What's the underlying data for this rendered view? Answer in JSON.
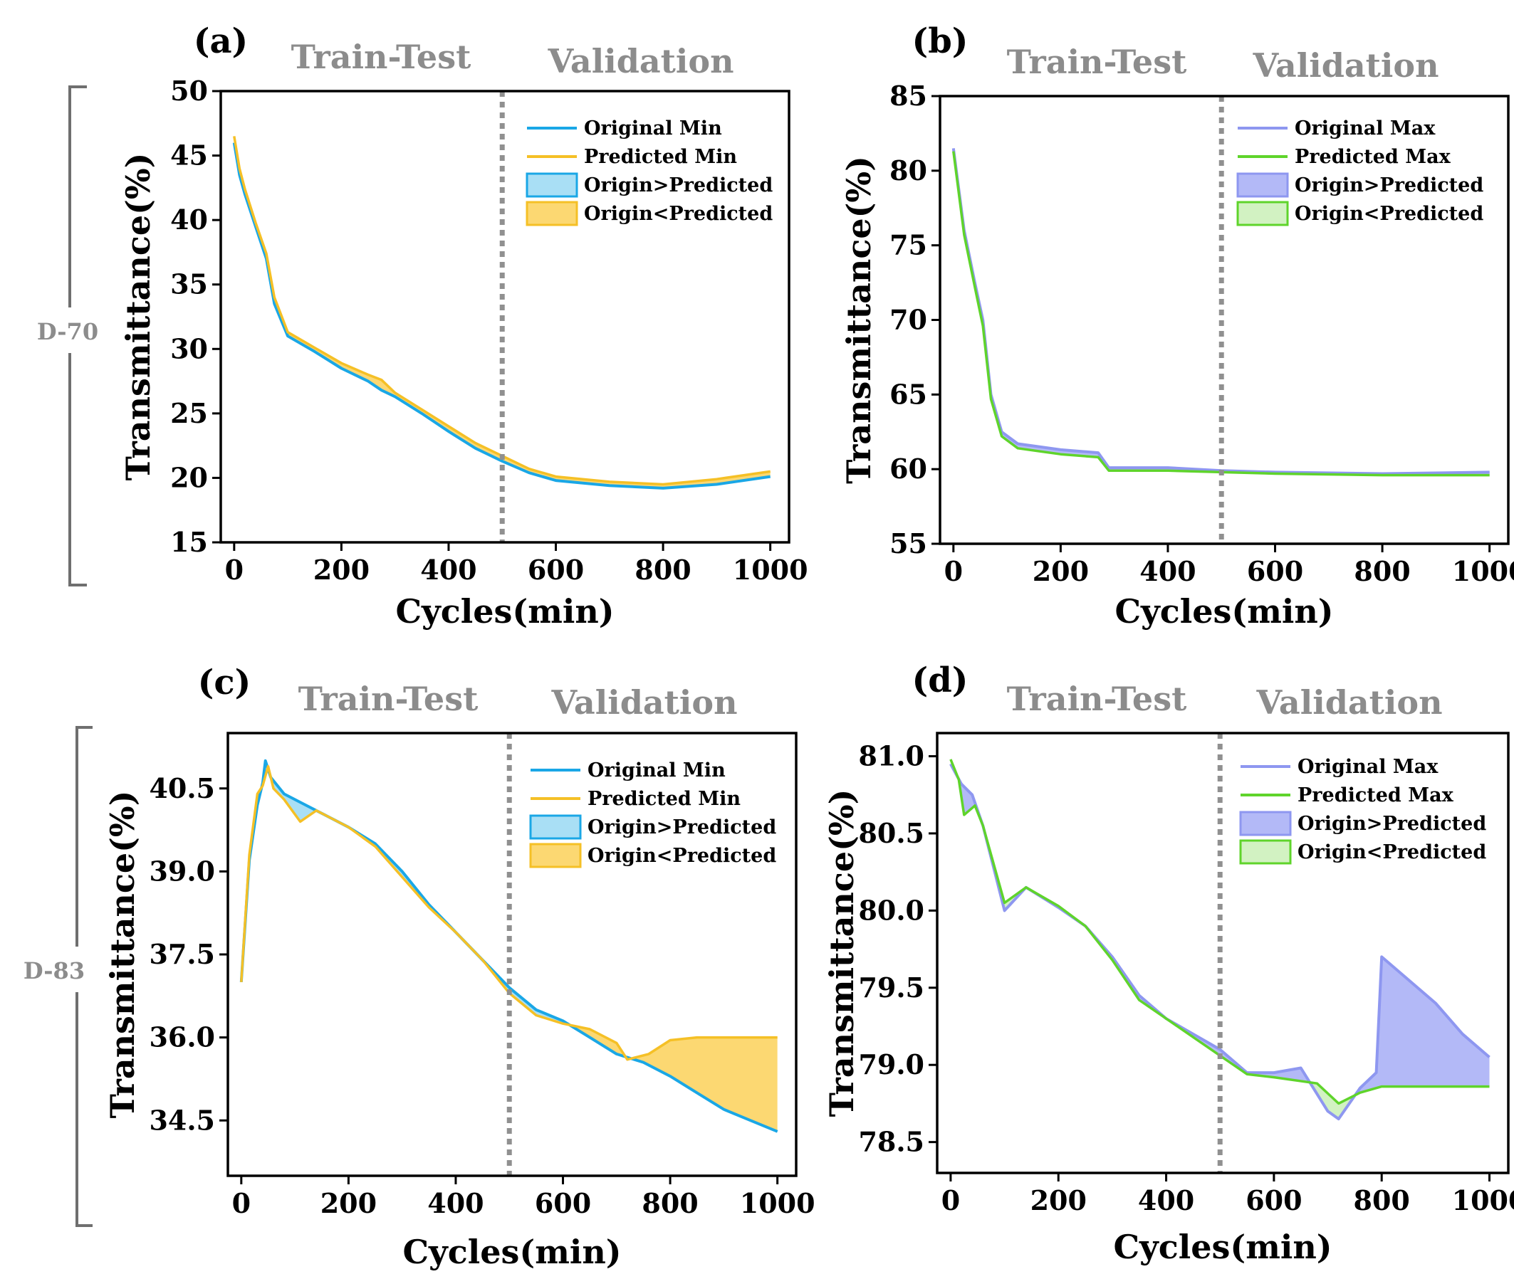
{
  "colors": {
    "original_min": "#1aa7e6",
    "predicted_min": "#f5c026",
    "fill_origin_gt_min": "#a9dff5",
    "fill_origin_lt_min": "#fcd872",
    "original_max": "#8e97f0",
    "predicted_max": "#5fd42b",
    "fill_origin_gt_max": "#b3b9f7",
    "fill_origin_lt_max": "#d2f2c2",
    "divider": "#909090",
    "region_text": "#8c8c8c"
  },
  "groups": [
    {
      "label": "D-70"
    },
    {
      "label": "D-83"
    }
  ],
  "chart_data": [
    {
      "panel": "(a)",
      "type": "line",
      "region_left": "Train-Test",
      "region_right": "Validation",
      "divider_x": 500,
      "xlabel": "Cycles(min)",
      "ylabel": "Transmittance(%)",
      "xlim": [
        -25,
        1035
      ],
      "ylim": [
        15,
        50
      ],
      "xticks": [
        0,
        200,
        400,
        600,
        800,
        1000
      ],
      "yticks": [
        15,
        20,
        25,
        30,
        35,
        40,
        45,
        50
      ],
      "legend_position": "top-right",
      "legend": [
        "Original Min",
        "Predicted Min",
        "Origin>Predicted",
        "Origin<Predicted"
      ],
      "series": [
        {
          "name": "Original Min",
          "points": [
            [
              0,
              46.0
            ],
            [
              10,
              43.5
            ],
            [
              20,
              42.0
            ],
            [
              40,
              39.5
            ],
            [
              60,
              37.0
            ],
            [
              75,
              33.5
            ],
            [
              100,
              31.0
            ],
            [
              150,
              29.8
            ],
            [
              200,
              28.5
            ],
            [
              250,
              27.5
            ],
            [
              275,
              26.8
            ],
            [
              300,
              26.3
            ],
            [
              350,
              25.0
            ],
            [
              400,
              23.6
            ],
            [
              450,
              22.3
            ],
            [
              500,
              21.3
            ],
            [
              550,
              20.4
            ],
            [
              600,
              19.8
            ],
            [
              700,
              19.4
            ],
            [
              800,
              19.2
            ],
            [
              900,
              19.5
            ],
            [
              1000,
              20.1
            ]
          ]
        },
        {
          "name": "Predicted Min",
          "points": [
            [
              0,
              46.5
            ],
            [
              10,
              44.0
            ],
            [
              20,
              42.4
            ],
            [
              40,
              39.8
            ],
            [
              60,
              37.4
            ],
            [
              75,
              34.0
            ],
            [
              100,
              31.3
            ],
            [
              150,
              30.1
            ],
            [
              200,
              28.9
            ],
            [
              250,
              28.0
            ],
            [
              275,
              27.6
            ],
            [
              300,
              26.6
            ],
            [
              350,
              25.3
            ],
            [
              400,
              24.0
            ],
            [
              450,
              22.7
            ],
            [
              500,
              21.7
            ],
            [
              550,
              20.7
            ],
            [
              600,
              20.1
            ],
            [
              700,
              19.7
            ],
            [
              800,
              19.5
            ],
            [
              900,
              19.9
            ],
            [
              1000,
              20.5
            ]
          ]
        }
      ]
    },
    {
      "panel": "(b)",
      "type": "line",
      "region_left": "Train-Test",
      "region_right": "Validation",
      "divider_x": 500,
      "xlabel": "Cycles(min)",
      "ylabel": "Transmittance(%)",
      "xlim": [
        -25,
        1035
      ],
      "ylim": [
        55,
        85
      ],
      "xticks": [
        0,
        200,
        400,
        600,
        800,
        1000
      ],
      "yticks": [
        55,
        60,
        65,
        70,
        75,
        80,
        85
      ],
      "legend_position": "top-right",
      "legend": [
        "Original Max",
        "Predicted Max",
        "Origin>Predicted",
        "Origin<Predicted"
      ],
      "series": [
        {
          "name": "Original Max",
          "points": [
            [
              0,
              81.5
            ],
            [
              20,
              76.0
            ],
            [
              40,
              72.5
            ],
            [
              55,
              70.0
            ],
            [
              70,
              65.0
            ],
            [
              90,
              62.5
            ],
            [
              120,
              61.7
            ],
            [
              200,
              61.3
            ],
            [
              270,
              61.1
            ],
            [
              290,
              60.1
            ],
            [
              400,
              60.1
            ],
            [
              500,
              59.9
            ],
            [
              600,
              59.8
            ],
            [
              800,
              59.7
            ],
            [
              1000,
              59.8
            ]
          ]
        },
        {
          "name": "Predicted Max",
          "points": [
            [
              0,
              81.3
            ],
            [
              20,
              75.7
            ],
            [
              40,
              72.2
            ],
            [
              55,
              69.6
            ],
            [
              70,
              64.7
            ],
            [
              90,
              62.2
            ],
            [
              120,
              61.4
            ],
            [
              200,
              61.0
            ],
            [
              270,
              60.8
            ],
            [
              290,
              59.9
            ],
            [
              400,
              59.9
            ],
            [
              500,
              59.8
            ],
            [
              600,
              59.7
            ],
            [
              800,
              59.6
            ],
            [
              1000,
              59.6
            ]
          ]
        }
      ]
    },
    {
      "panel": "(c)",
      "type": "line",
      "region_left": "Train-Test",
      "region_right": "Validation",
      "divider_x": 500,
      "xlabel": "Cycles(min)",
      "ylabel": "Transmittance(%)",
      "xlim": [
        -25,
        1035
      ],
      "ylim": [
        33.5,
        41.5
      ],
      "xticks": [
        0,
        200,
        400,
        600,
        800,
        1000
      ],
      "yticks": [
        34.5,
        36.0,
        37.5,
        39.0,
        40.5
      ],
      "legend_position": "top-right",
      "legend": [
        "Original Min",
        "Predicted Min",
        "Origin>Predicted",
        "Origin<Predicted"
      ],
      "series": [
        {
          "name": "Original Min",
          "points": [
            [
              0,
              37.0
            ],
            [
              15,
              39.2
            ],
            [
              30,
              40.2
            ],
            [
              40,
              40.6
            ],
            [
              45,
              41.0
            ],
            [
              55,
              40.7
            ],
            [
              80,
              40.4
            ],
            [
              120,
              40.2
            ],
            [
              160,
              40.0
            ],
            [
              200,
              39.8
            ],
            [
              250,
              39.5
            ],
            [
              300,
              39.0
            ],
            [
              350,
              38.4
            ],
            [
              400,
              37.9
            ],
            [
              450,
              37.4
            ],
            [
              500,
              36.9
            ],
            [
              550,
              36.5
            ],
            [
              600,
              36.3
            ],
            [
              650,
              36.0
            ],
            [
              700,
              35.7
            ],
            [
              750,
              35.55
            ],
            [
              800,
              35.3
            ],
            [
              850,
              35.0
            ],
            [
              900,
              34.7
            ],
            [
              950,
              34.5
            ],
            [
              1000,
              34.3
            ]
          ]
        },
        {
          "name": "Predicted Min",
          "points": [
            [
              0,
              37.0
            ],
            [
              15,
              39.3
            ],
            [
              30,
              40.4
            ],
            [
              40,
              40.55
            ],
            [
              50,
              40.9
            ],
            [
              60,
              40.5
            ],
            [
              80,
              40.3
            ],
            [
              110,
              39.9
            ],
            [
              140,
              40.1
            ],
            [
              200,
              39.8
            ],
            [
              250,
              39.45
            ],
            [
              300,
              38.9
            ],
            [
              350,
              38.35
            ],
            [
              400,
              37.9
            ],
            [
              450,
              37.4
            ],
            [
              500,
              36.8
            ],
            [
              550,
              36.4
            ],
            [
              600,
              36.25
            ],
            [
              650,
              36.15
            ],
            [
              700,
              35.9
            ],
            [
              720,
              35.6
            ],
            [
              760,
              35.7
            ],
            [
              800,
              35.95
            ],
            [
              850,
              36.0
            ],
            [
              1000,
              36.0
            ]
          ]
        }
      ]
    },
    {
      "panel": "(d)",
      "type": "line",
      "region_left": "Train-Test",
      "region_right": "Validation",
      "divider_x": 500,
      "xlabel": "Cycles(min)",
      "ylabel": "Transmittance(%)",
      "xlim": [
        -25,
        1035
      ],
      "ylim": [
        78.3,
        81.15
      ],
      "xticks": [
        0,
        200,
        400,
        600,
        800,
        1000
      ],
      "yticks": [
        78.5,
        79.0,
        79.5,
        80.0,
        80.5,
        81.0
      ],
      "legend_position": "top-right",
      "legend": [
        "Original Max",
        "Predicted Max",
        "Origin>Predicted",
        "Origin<Predicted"
      ],
      "series": [
        {
          "name": "Original Max",
          "points": [
            [
              0,
              80.95
            ],
            [
              20,
              80.82
            ],
            [
              40,
              80.75
            ],
            [
              60,
              80.55
            ],
            [
              100,
              80.0
            ],
            [
              140,
              80.15
            ],
            [
              200,
              80.02
            ],
            [
              250,
              79.9
            ],
            [
              300,
              79.7
            ],
            [
              350,
              79.45
            ],
            [
              400,
              79.3
            ],
            [
              450,
              79.2
            ],
            [
              500,
              79.1
            ],
            [
              550,
              78.95
            ],
            [
              600,
              78.95
            ],
            [
              650,
              78.98
            ],
            [
              700,
              78.7
            ],
            [
              720,
              78.65
            ],
            [
              760,
              78.85
            ],
            [
              790,
              78.95
            ],
            [
              800,
              79.7
            ],
            [
              850,
              79.55
            ],
            [
              900,
              79.4
            ],
            [
              950,
              79.2
            ],
            [
              1000,
              79.05
            ]
          ]
        },
        {
          "name": "Predicted Max",
          "points": [
            [
              0,
              80.98
            ],
            [
              15,
              80.85
            ],
            [
              25,
              80.62
            ],
            [
              45,
              80.68
            ],
            [
              60,
              80.55
            ],
            [
              100,
              80.05
            ],
            [
              140,
              80.15
            ],
            [
              200,
              80.03
            ],
            [
              250,
              79.9
            ],
            [
              300,
              79.68
            ],
            [
              350,
              79.42
            ],
            [
              400,
              79.3
            ],
            [
              450,
              79.18
            ],
            [
              500,
              79.06
            ],
            [
              550,
              78.94
            ],
            [
              600,
              78.92
            ],
            [
              680,
              78.88
            ],
            [
              720,
              78.75
            ],
            [
              760,
              78.82
            ],
            [
              800,
              78.86
            ],
            [
              1000,
              78.86
            ]
          ]
        }
      ]
    }
  ]
}
